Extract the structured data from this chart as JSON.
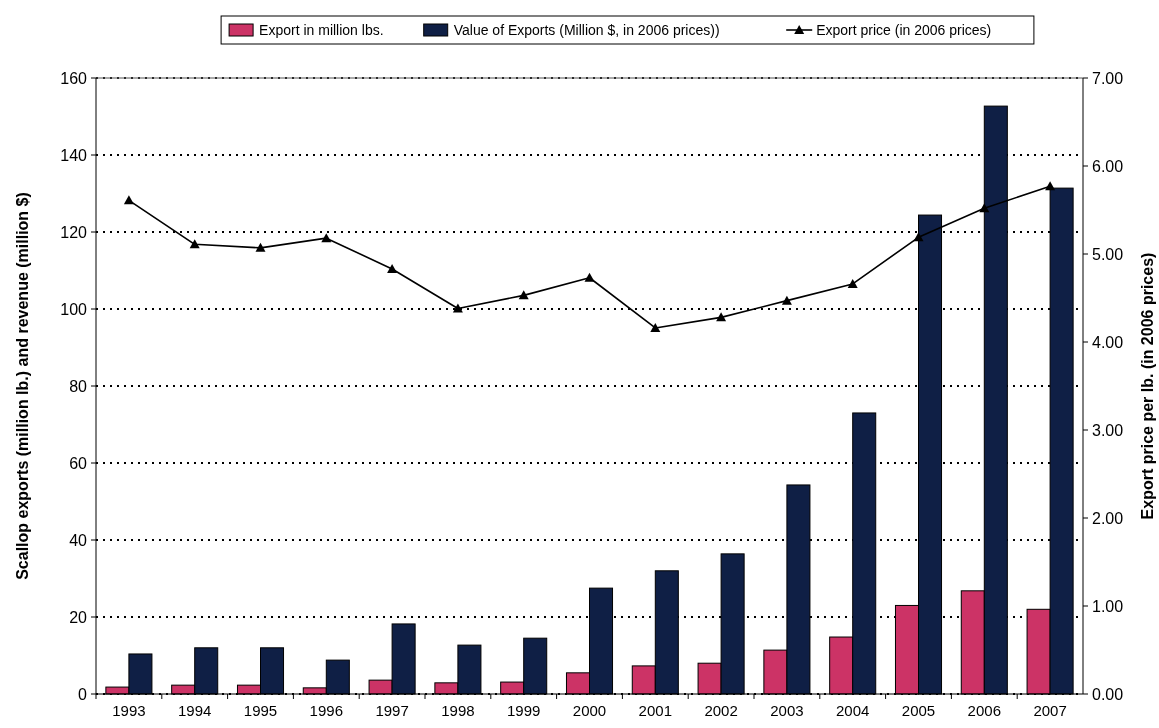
{
  "chart_data": {
    "type": "bar",
    "categories": [
      "1993",
      "1994",
      "1995",
      "1996",
      "1997",
      "1998",
      "1999",
      "2000",
      "2001",
      "2002",
      "2003",
      "2004",
      "2005",
      "2006",
      "2007"
    ],
    "ylabel": "Scallop exports (million lb.) and revenue (million $)",
    "y2label": "Export price per lb. (in 2006 prices)",
    "ylim": [
      0,
      160
    ],
    "yticks": [
      0,
      20,
      40,
      60,
      80,
      100,
      120,
      140,
      160
    ],
    "y2lim": [
      0,
      7
    ],
    "y2ticks": [
      {
        "value": 0,
        "label": "0.00"
      },
      {
        "value": 1,
        "label": "1.00"
      },
      {
        "value": 2,
        "label": "2.00"
      },
      {
        "value": 3,
        "label": "3.00"
      },
      {
        "value": 4,
        "label": "4.00"
      },
      {
        "value": 5,
        "label": "5.00"
      },
      {
        "value": 6,
        "label": "6.00"
      },
      {
        "value": 7,
        "label": "7.00"
      }
    ],
    "grid": "y",
    "legend": "top",
    "marker": "triangle",
    "series": [
      {
        "name": "Export in million lbs.",
        "color": "#cc3366",
        "values": [
          1.8,
          2.3,
          2.3,
          1.6,
          3.6,
          2.9,
          3.1,
          5.5,
          7.3,
          8,
          11.4,
          14.8,
          23,
          26.8,
          22
        ]
      },
      {
        "name": "Value of Exports (Million $, in 2006 prices))",
        "color": "#0f1f45",
        "values": [
          10.4,
          12,
          12,
          8.8,
          18.2,
          12.7,
          14.5,
          27.5,
          32,
          36.4,
          54.3,
          73,
          124.4,
          152.7,
          131.4
        ]
      },
      {
        "name": "Export price (in 2006 prices)",
        "type": "line",
        "axis": "y2",
        "color": "#000000",
        "values": [
          5.61,
          5.11,
          5.07,
          5.18,
          4.83,
          4.38,
          4.53,
          4.73,
          4.16,
          4.28,
          4.47,
          4.66,
          5.19,
          5.52,
          5.77
        ]
      }
    ]
  }
}
